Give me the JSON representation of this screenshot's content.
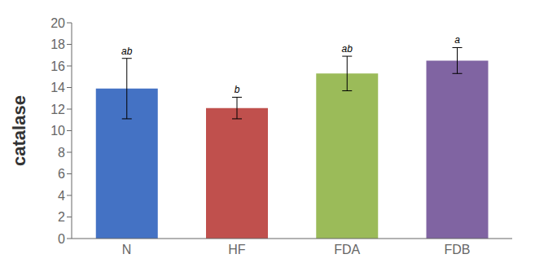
{
  "chart_data": {
    "type": "bar",
    "categories": [
      "N",
      "HF",
      "FDA",
      "FDB"
    ],
    "values": [
      13.9,
      12.1,
      15.3,
      16.5
    ],
    "errors": [
      2.8,
      1.0,
      1.6,
      1.2
    ],
    "colors": [
      "#4472C4",
      "#C0504D",
      "#9BBB59",
      "#8064A2"
    ],
    "annotations": [
      "ab",
      "b",
      "ab",
      "a"
    ],
    "ylabel": "catalase",
    "ylim": [
      0,
      20
    ],
    "yticks": [
      0,
      2,
      4,
      6,
      8,
      10,
      12,
      14,
      16,
      18,
      20
    ],
    "grid": false
  }
}
